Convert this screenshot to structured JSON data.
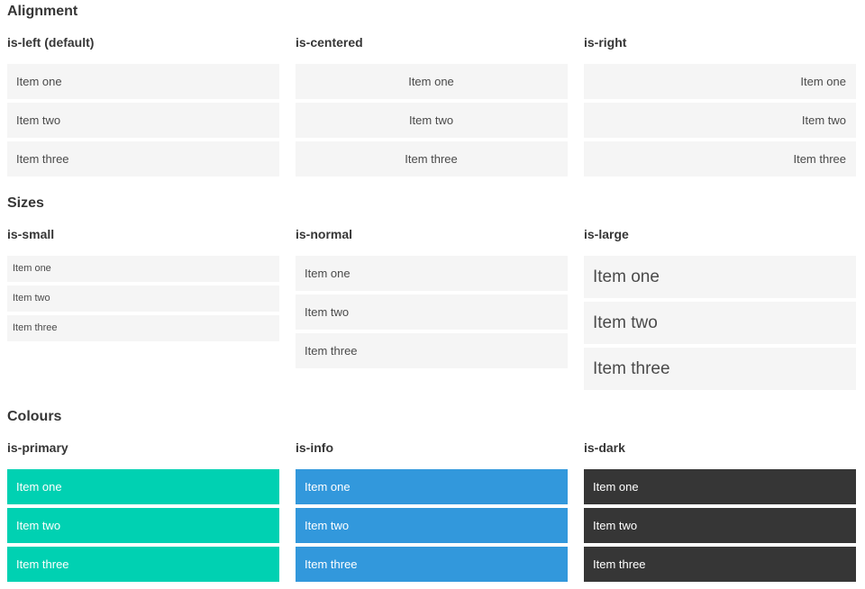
{
  "colors": {
    "primary": "#00d1b2",
    "info": "#3298dc",
    "dark": "#363636",
    "item_background": "#f5f5f5",
    "item_text": "#4a4a4a",
    "heading_text": "#363636",
    "colored_item_text": "#ffffff"
  },
  "sections": [
    {
      "title": "Alignment",
      "columns": [
        {
          "heading": "is-left (default)",
          "variant": "is-left",
          "items": [
            "Item one",
            "Item two",
            "Item three"
          ]
        },
        {
          "heading": "is-centered",
          "variant": "is-centered",
          "items": [
            "Item one",
            "Item two",
            "Item three"
          ]
        },
        {
          "heading": "is-right",
          "variant": "is-right",
          "items": [
            "Item one",
            "Item two",
            "Item three"
          ]
        }
      ]
    },
    {
      "title": "Sizes",
      "columns": [
        {
          "heading": "is-small",
          "variant": "is-small",
          "items": [
            "Item one",
            "Item two",
            "Item three"
          ]
        },
        {
          "heading": "is-normal",
          "variant": "is-normal",
          "items": [
            "Item one",
            "Item two",
            "Item three"
          ]
        },
        {
          "heading": "is-large",
          "variant": "is-large",
          "items": [
            "Item one",
            "Item two",
            "Item three"
          ]
        }
      ]
    },
    {
      "title": "Colours",
      "columns": [
        {
          "heading": "is-primary",
          "variant": "is-primary",
          "items": [
            "Item one",
            "Item two",
            "Item three"
          ]
        },
        {
          "heading": "is-info",
          "variant": "is-info",
          "items": [
            "Item one",
            "Item two",
            "Item three"
          ]
        },
        {
          "heading": "is-dark",
          "variant": "is-dark",
          "items": [
            "Item one",
            "Item two",
            "Item three"
          ]
        }
      ]
    }
  ]
}
